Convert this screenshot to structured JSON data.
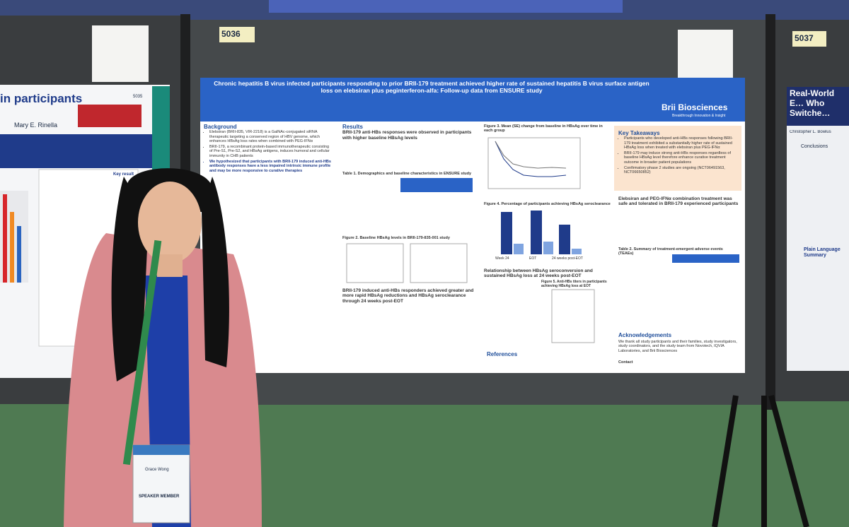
{
  "booths": {
    "center": "5036",
    "right": "5037"
  },
  "main_poster": {
    "title": "Chronic hepatitis B virus infected participants responding to prior BRII-179 treatment achieved higher rate of sustained hepatitis B virus surface antigen loss on elebsiran plus peginterferon-alfa: Follow-up data from ENSURE study",
    "logo": "Brii Biosciences",
    "logo_tagline": "Breakthrough Innovation & Insight",
    "background": {
      "heading": "Background",
      "bullets": [
        "Elebsiran (BRII-835, VIR-2218) is a GalNAc-conjugated siRNA therapeutic targeting a conserved region of HBV genome, which enhances HBsAg loss rates when combined with PEG-IFNα",
        "BRII-179, a recombinant protein-based immunotherapeutic consisting of Pre-S1, Pre-S2, and HBsAg antigens, induces humoral and cellular immunity in CHB patients",
        "We hypothesized that participants with BRII-179 induced anti-HBs antibody responses have a less impaired intrinsic immune profile and may be more responsive to curative therapies"
      ]
    },
    "results": {
      "heading": "Results",
      "subheading_1": "BRII-179 anti-HBs responses were observed in participants with higher baseline HBsAg levels",
      "table_1": "Table 1. Demographics and baseline characteristics in ENSURE study",
      "figure_2": "Figure 2. Baseline HBsAg levels in BRII-179-835-001 study",
      "subheading_2": "BRII-179 induced anti-HBs responders achieved greater and more rapid HBsAg reductions and HBsAg seroclearance through 24 weeks post-EOT"
    },
    "figure_3": "Figure 3. Mean (SE) change from baseline in HBsAg over time in each group",
    "figure_4": "Figure 4. Percentage of participants achieving HBsAg seroclearance",
    "figure_4_groups": [
      "Week 24",
      "EOT",
      "24 weeks post-EOT"
    ],
    "relationship_heading": "Relationship between HBsAg seroconversion and sustained HBsAg loss at 24 weeks post-EOT",
    "figure_5": "Figure 5. Anti-HBs titers in participants achieving HBsAg loss at EOT",
    "references_heading": "References",
    "key_takeaways": {
      "heading": "Key Takeaways",
      "bullets": [
        "Participants who developed anti-HBs responses following BRII-179 treatment exhibited a substantially higher rate of sustained HBsAg loss when treated with elebsiran plus PEG-IFNα",
        "BRII-179 may induce strong anti-HBs responses regardless of baseline HBsAg level therefore enhance curative treatment outcome in broader patient populations",
        "Confirmatory phase 2 studies are ongoing (NCT06491563, NCT06650852)"
      ]
    },
    "safety_heading": "Elebsiran and PEG-IFNα combination treatment was safe and tolerated in BRII-179 experienced participants",
    "table_2": "Table 2. Summary of treatment-emergent adverse events (TEAEs)",
    "acknowledgements_heading": "Acknowledgements",
    "acknowledgements": "We thank all study participants and their families, study investigators, study coordinators, and the study team from Novotech, IQVIA Laboratories, and Brii Biosciences",
    "contact": "Contact"
  },
  "left_poster": {
    "title": "in participants",
    "number": "5035",
    "authors": "Mary E. Rinella",
    "badge": "Key result"
  },
  "right_poster": {
    "title": "Real-World E… Who Switche…",
    "author": "Christopher L. Bowlus",
    "section": "Conclusions",
    "section_2": "Plain Language Summary"
  },
  "badge": {
    "name": "Grace Wong",
    "role": "SPEAKER MEMBER"
  }
}
